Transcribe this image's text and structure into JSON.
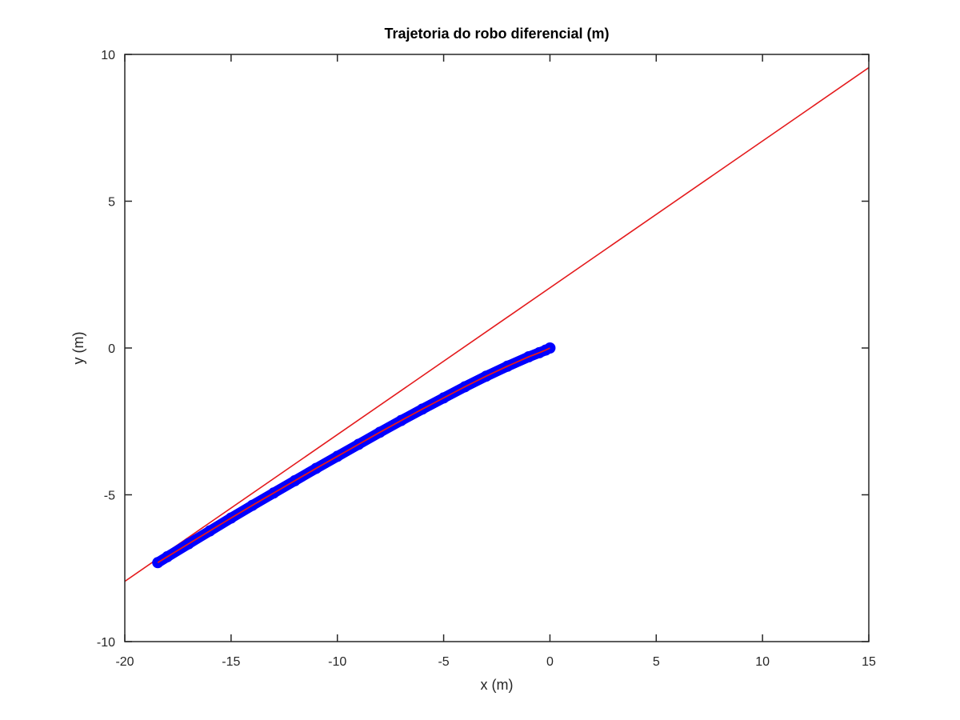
{
  "chart_data": {
    "type": "line",
    "title": "Trajetoria do robo diferencial (m)",
    "xlabel": "x (m)",
    "ylabel": "y (m)",
    "xlim": [
      -20,
      15
    ],
    "ylim": [
      -10,
      10
    ],
    "xticks": [
      -20,
      -15,
      -10,
      -5,
      0,
      5,
      10,
      15
    ],
    "yticks": [
      -10,
      -5,
      0,
      5,
      10
    ],
    "grid": false,
    "box": true,
    "series": [
      {
        "kind": "reference-line",
        "color": "#e41a1c",
        "x": [
          -20,
          15
        ],
        "y": [
          -7.95,
          9.55
        ]
      },
      {
        "kind": "trajectory-markers",
        "color": "#0000ff",
        "x": [
          0.0,
          -0.2,
          -0.5,
          -1.0,
          -2.0,
          -3.0,
          -4.0,
          -5.0,
          -6.0,
          -7.0,
          -8.0,
          -9.0,
          -10.0,
          -11.0,
          -12.0,
          -13.0,
          -14.0,
          -15.0,
          -16.0,
          -17.0,
          -18.0,
          -18.45
        ],
        "y": [
          0.0,
          -0.07,
          -0.16,
          -0.3,
          -0.62,
          -0.96,
          -1.32,
          -1.7,
          -2.08,
          -2.47,
          -2.87,
          -3.28,
          -3.69,
          -4.1,
          -4.52,
          -4.94,
          -5.36,
          -5.79,
          -6.23,
          -6.67,
          -7.11,
          -7.31
        ]
      },
      {
        "kind": "trajectory-line",
        "color": "#e41a1c",
        "x": [
          0.0,
          -0.2,
          -0.5,
          -1.0,
          -2.0,
          -3.0,
          -4.0,
          -5.0,
          -6.0,
          -7.0,
          -8.0,
          -9.0,
          -10.0,
          -11.0,
          -12.0,
          -13.0,
          -14.0,
          -15.0,
          -16.0,
          -17.0,
          -18.0,
          -18.45
        ],
        "y": [
          0.0,
          -0.07,
          -0.16,
          -0.3,
          -0.62,
          -0.96,
          -1.32,
          -1.7,
          -2.08,
          -2.47,
          -2.87,
          -3.28,
          -3.69,
          -4.1,
          -4.52,
          -4.94,
          -5.36,
          -5.79,
          -6.23,
          -6.67,
          -7.11,
          -7.31
        ]
      }
    ]
  }
}
